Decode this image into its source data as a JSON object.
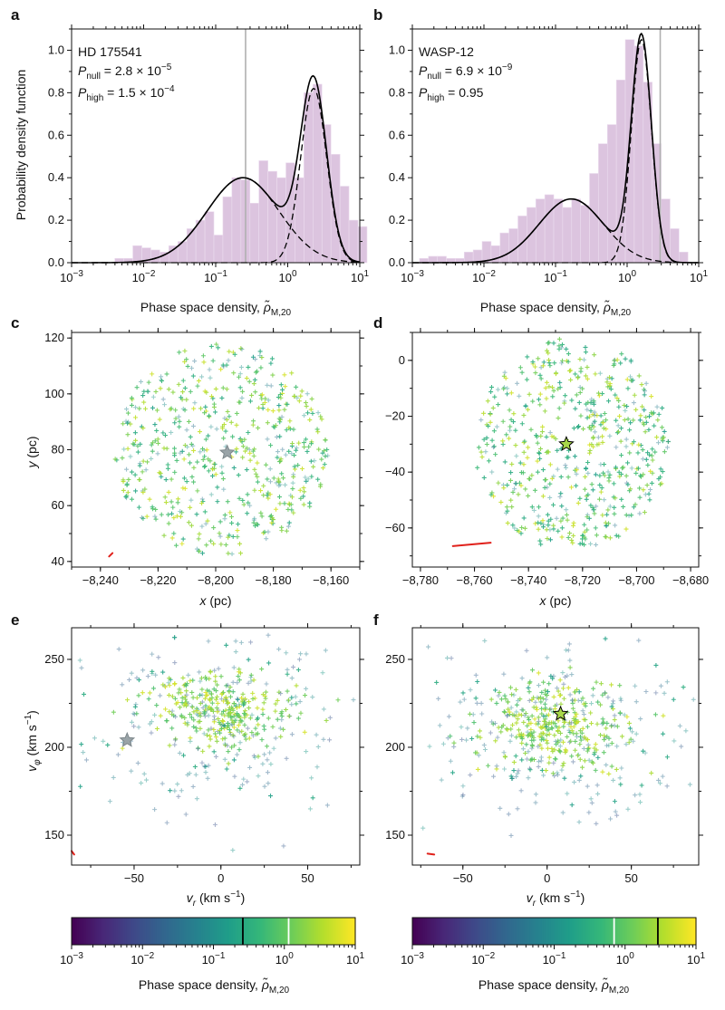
{
  "panels": {
    "a": {
      "letter": "a",
      "star": "HD 175541",
      "pnull_prefix": "P",
      "pnull_sub": "null",
      "pnull_value": " = 2.8 × 10",
      "pnull_exp": "−5",
      "phigh_prefix": "P",
      "phigh_sub": "high",
      "phigh_value": " = 1.5 × 10",
      "phigh_exp": "−4"
    },
    "b": {
      "letter": "b",
      "star": "WASP-12",
      "pnull_prefix": "P",
      "pnull_sub": "null",
      "pnull_value": " = 6.9 × 10",
      "pnull_exp": "−9",
      "phigh_prefix": "P",
      "phigh_sub": "high",
      "phigh_value": " = 0.95",
      "phigh_exp": ""
    },
    "c": {
      "letter": "c"
    },
    "d": {
      "letter": "d"
    },
    "e": {
      "letter": "e"
    },
    "f": {
      "letter": "f"
    }
  },
  "labels": {
    "pdf_ylabel": "Probability density function",
    "psd_label_main": "Phase space density, ",
    "psd_rho": "ρ̃",
    "psd_sub": "M,20",
    "x_pc_main": "x",
    "x_pc_unit": " (pc)",
    "y_pc_main": "y",
    "y_pc_unit": " (pc)",
    "vr_main": "v",
    "vr_sub": "r",
    "vr_unit": " (km s",
    "vr_exp": "−1",
    "vr_close": ")",
    "vphi_main": "v",
    "vphi_sub": "φ",
    "vphi_unit": " (km s",
    "vphi_exp": "−1",
    "vphi_close": ")"
  },
  "colors": {
    "hist": "#dcc4df",
    "hist_edge": "#ebdcee",
    "curve": "#000000",
    "vline": "#b0b0b0",
    "red_marker": "#e0201a",
    "star_gray": "#9aa4a8",
    "star_green": "#a8d84a"
  },
  "chart_data": [
    {
      "id": "a",
      "type": "bar",
      "title": "HD 175541",
      "xlabel": "Phase space density, ρ̃M,20",
      "ylabel": "Probability density function",
      "xscale": "log",
      "xlim": [
        0.001,
        10
      ],
      "ylim": [
        0,
        1.1
      ],
      "x_ticks": [
        {
          "v": 0.001,
          "base": "10",
          "exp": "−3"
        },
        {
          "v": 0.01,
          "base": "10",
          "exp": "−2"
        },
        {
          "v": 0.1,
          "base": "10",
          "exp": "−1"
        },
        {
          "v": 1,
          "base": "10",
          "exp": "0"
        },
        {
          "v": 10,
          "base": "10",
          "exp": "1"
        }
      ],
      "y_ticks": [
        {
          "v": 0,
          "label": "0.0"
        },
        {
          "v": 0.2,
          "label": "0.2"
        },
        {
          "v": 0.4,
          "label": "0.4"
        },
        {
          "v": 0.6,
          "label": "0.6"
        },
        {
          "v": 0.8,
          "label": "0.8"
        },
        {
          "v": 1.0,
          "label": "1.0"
        }
      ],
      "hist_log_start": -2.4,
      "hist_log_width": 0.125,
      "hist_values": [
        0.02,
        0.02,
        0.08,
        0.07,
        0.06,
        0.05,
        0.08,
        0.1,
        0.16,
        0.2,
        0.24,
        0.13,
        0.31,
        0.4,
        0.39,
        0.28,
        0.48,
        0.43,
        0.4,
        0.47,
        0.4,
        0.8,
        0.84,
        0.65,
        0.51,
        0.36,
        0.2,
        0.17
      ],
      "components": [
        {
          "mu_log": -0.62,
          "sigma_log": 0.5,
          "amp": 0.4
        },
        {
          "mu_log": 0.36,
          "sigma_log": 0.18,
          "amp": 0.82
        }
      ],
      "vline": 0.26
    },
    {
      "id": "b",
      "type": "bar",
      "title": "WASP-12",
      "xlabel": "Phase space density, ρ̃M,20",
      "ylabel": "",
      "xscale": "log",
      "xlim": [
        0.001,
        10
      ],
      "ylim": [
        0,
        1.1
      ],
      "x_ticks": [
        {
          "v": 0.001,
          "base": "10",
          "exp": "−3"
        },
        {
          "v": 0.01,
          "base": "10",
          "exp": "−2"
        },
        {
          "v": 0.1,
          "base": "10",
          "exp": "−1"
        },
        {
          "v": 1,
          "base": "10",
          "exp": "0"
        },
        {
          "v": 10,
          "base": "10",
          "exp": "1"
        }
      ],
      "y_ticks": [
        {
          "v": 0,
          "label": "0.0"
        },
        {
          "v": 0.2,
          "label": "0.2"
        },
        {
          "v": 0.4,
          "label": "0.4"
        },
        {
          "v": 0.6,
          "label": "0.6"
        },
        {
          "v": 0.8,
          "label": "0.8"
        },
        {
          "v": 1.0,
          "label": "1.0"
        }
      ],
      "hist_log_start": -2.9,
      "hist_log_width": 0.125,
      "hist_values": [
        0.02,
        0.03,
        0.03,
        0.02,
        0.02,
        0.05,
        0.06,
        0.1,
        0.08,
        0.14,
        0.16,
        0.22,
        0.26,
        0.3,
        0.32,
        0.3,
        0.26,
        0.3,
        0.27,
        0.42,
        0.56,
        0.65,
        0.86,
        1.05,
        1.02,
        0.85,
        0.56,
        0.3,
        0.16,
        0.05
      ],
      "components": [
        {
          "mu_log": -0.78,
          "sigma_log": 0.45,
          "amp": 0.3
        },
        {
          "mu_log": 0.2,
          "sigma_log": 0.14,
          "amp": 1.05
        }
      ],
      "vline": 2.9
    },
    {
      "id": "c",
      "type": "scatter",
      "xlabel": "x (pc)",
      "ylabel": "y (pc)",
      "xlim": [
        -8250,
        -8150
      ],
      "ylim": [
        38,
        122
      ],
      "x_ticks": [
        {
          "v": -8240,
          "label": "−8,240"
        },
        {
          "v": -8220,
          "label": "−8,220"
        },
        {
          "v": -8200,
          "label": "−8,200"
        },
        {
          "v": -8180,
          "label": "−8,180"
        },
        {
          "v": -8160,
          "label": "−8,160"
        }
      ],
      "y_ticks": [
        {
          "v": 40,
          "label": "40"
        },
        {
          "v": 60,
          "label": "60"
        },
        {
          "v": 80,
          "label": "80"
        },
        {
          "v": 100,
          "label": "100"
        },
        {
          "v": 120,
          "label": "120"
        }
      ],
      "cloud": {
        "shape": "disk",
        "cx": -8198,
        "cy": 80,
        "rx": 37,
        "ry": 38,
        "count": 560,
        "seed": 11
      },
      "host_star": {
        "x": -8196,
        "y": 79,
        "color": "star_gray"
      },
      "red_mark": [
        [
          -8237.0,
          41.8
        ],
        [
          -8235.8,
          43.0
        ]
      ]
    },
    {
      "id": "d",
      "type": "scatter",
      "xlabel": "x (pc)",
      "ylabel": "",
      "xlim": [
        -8783,
        -8677
      ],
      "ylim": [
        -74,
        10
      ],
      "x_ticks": [
        {
          "v": -8780,
          "label": "−8,780"
        },
        {
          "v": -8760,
          "label": "−8,760"
        },
        {
          "v": -8740,
          "label": "−8,740"
        },
        {
          "v": -8720,
          "label": "−8,720"
        },
        {
          "v": -8700,
          "label": "−8,700"
        },
        {
          "v": -8680,
          "label": "−8,680"
        }
      ],
      "y_ticks": [
        {
          "v": -60,
          "label": "−60"
        },
        {
          "v": -40,
          "label": "−40"
        },
        {
          "v": -20,
          "label": "−20"
        },
        {
          "v": 0,
          "label": "0"
        }
      ],
      "cloud": {
        "shape": "disk",
        "cx": -8724,
        "cy": -30,
        "rx": 36,
        "ry": 38,
        "count": 560,
        "seed": 23
      },
      "host_star": {
        "x": -8726,
        "y": -30,
        "color": "star_green"
      },
      "red_mark": [
        [
          -8768,
          -66.5
        ],
        [
          -8754,
          -65.3
        ]
      ]
    },
    {
      "id": "e",
      "type": "scatter",
      "xlabel": "vr (km s−1)",
      "ylabel": "vφ (km s−1)",
      "xlim": [
        -86,
        80
      ],
      "ylim": [
        133,
        268
      ],
      "x_ticks": [
        {
          "v": -50,
          "label": "−50"
        },
        {
          "v": 0,
          "label": "0"
        },
        {
          "v": 50,
          "label": "50"
        }
      ],
      "y_ticks": [
        {
          "v": 150,
          "label": "150"
        },
        {
          "v": 200,
          "label": "200"
        },
        {
          "v": 250,
          "label": "250"
        }
      ],
      "cloud": {
        "shape": "velocity",
        "cx": -2,
        "cy": 222,
        "rx": 28,
        "ry": 10,
        "count": 520,
        "seed": 37,
        "halo_rx": 85,
        "halo_ry": 65
      },
      "host_star": {
        "x": -54,
        "y": 204,
        "color": "star_gray"
      },
      "red_mark": [
        [
          -86,
          141
        ],
        [
          -84.5,
          139
        ]
      ]
    },
    {
      "id": "f",
      "type": "scatter",
      "xlabel": "vr (km s−1)",
      "ylabel": "",
      "xlim": [
        -80,
        90
      ],
      "ylim": [
        133,
        268
      ],
      "x_ticks": [
        {
          "v": -50,
          "label": "−50"
        },
        {
          "v": 0,
          "label": "0"
        },
        {
          "v": 50,
          "label": "50"
        }
      ],
      "y_ticks": [
        {
          "v": 150,
          "label": "150"
        },
        {
          "v": 200,
          "label": "200"
        },
        {
          "v": 250,
          "label": "250"
        }
      ],
      "cloud": {
        "shape": "velocity",
        "cx": 4,
        "cy": 212,
        "rx": 30,
        "ry": 11,
        "count": 540,
        "seed": 53,
        "halo_rx": 85,
        "halo_ry": 60
      },
      "host_star": {
        "x": 8,
        "y": 219,
        "color": "star_green"
      },
      "red_mark": [
        [
          -71,
          139.5
        ],
        [
          -67,
          139
        ]
      ]
    },
    {
      "id": "cb1",
      "type": "heatmap",
      "label": "Phase space density, ρ̃M,20",
      "scale": "log",
      "range": [
        0.001,
        10
      ],
      "colormap": "viridis",
      "ticks": [
        {
          "v": 0.001,
          "base": "10",
          "exp": "−3"
        },
        {
          "v": 0.01,
          "base": "10",
          "exp": "−2"
        },
        {
          "v": 0.1,
          "base": "10",
          "exp": "−1"
        },
        {
          "v": 1,
          "base": "10",
          "exp": "0"
        },
        {
          "v": 10,
          "base": "10",
          "exp": "1"
        }
      ],
      "markers": [
        {
          "v": 0.26,
          "color": "#000000"
        },
        {
          "v": 1.15,
          "color": "#ffffff"
        }
      ]
    },
    {
      "id": "cb2",
      "type": "heatmap",
      "label": "Phase space density, ρ̃M,20",
      "scale": "log",
      "range": [
        0.001,
        10
      ],
      "colormap": "viridis",
      "ticks": [
        {
          "v": 0.001,
          "base": "10",
          "exp": "−3"
        },
        {
          "v": 0.01,
          "base": "10",
          "exp": "−2"
        },
        {
          "v": 0.1,
          "base": "10",
          "exp": "−1"
        },
        {
          "v": 1,
          "base": "10",
          "exp": "0"
        },
        {
          "v": 10,
          "base": "10",
          "exp": "1"
        }
      ],
      "markers": [
        {
          "v": 0.7,
          "color": "#ffffff"
        },
        {
          "v": 2.9,
          "color": "#000000"
        }
      ]
    }
  ]
}
